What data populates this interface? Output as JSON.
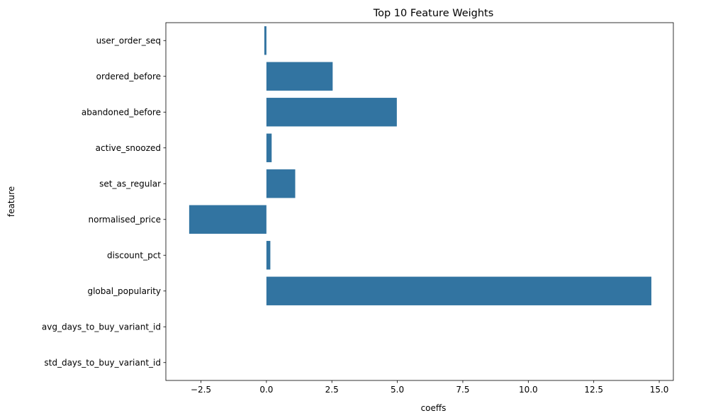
{
  "chart_data": {
    "type": "bar",
    "orientation": "horizontal",
    "title": "Top 10 Feature Weights",
    "xlabel": "coeffs",
    "ylabel": "feature",
    "categories": [
      "user_order_seq",
      "ordered_before",
      "abandoned_before",
      "active_snoozed",
      "set_as_regular",
      "normalised_price",
      "discount_pct",
      "global_popularity",
      "avg_days_to_buy_variant_id",
      "std_days_to_buy_variant_id"
    ],
    "values": [
      -0.08,
      2.53,
      4.98,
      0.2,
      1.1,
      -2.95,
      0.15,
      14.7,
      0.0,
      0.0
    ],
    "xlim": [
      -3.84,
      15.54
    ],
    "xticks": [
      -2.5,
      0.0,
      2.5,
      5.0,
      7.5,
      10.0,
      12.5,
      15.0
    ],
    "xtick_labels": [
      "−2.5",
      "0.0",
      "2.5",
      "5.0",
      "7.5",
      "10.0",
      "12.5",
      "15.0"
    ],
    "grid": false,
    "bar_color": "#3274a1"
  }
}
